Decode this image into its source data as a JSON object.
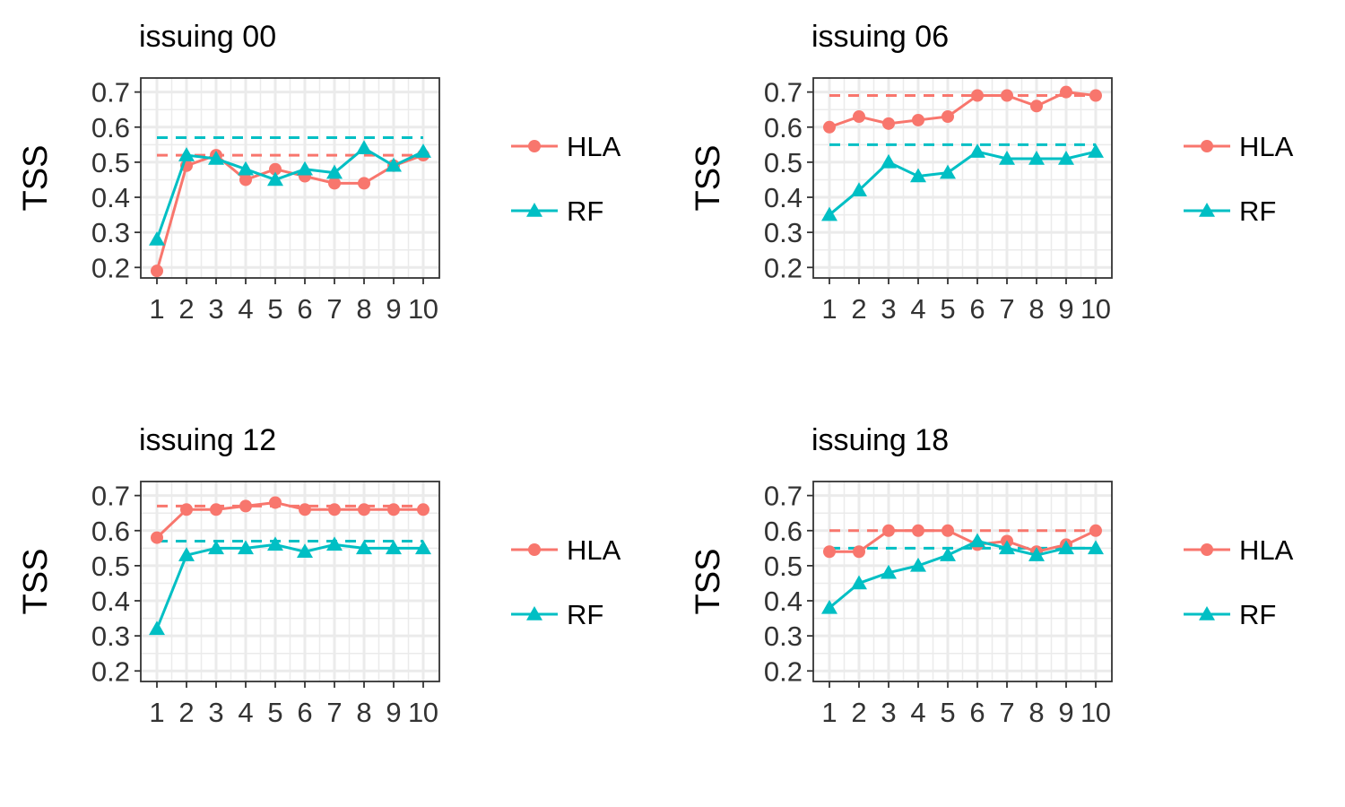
{
  "colors": {
    "HLA": "#F8766D",
    "RF": "#00BFC4",
    "grid": "#EBEBEB",
    "frame": "#333333"
  },
  "chart_data": [
    {
      "type": "line",
      "title": "issuing 00",
      "xlabel": "",
      "ylabel": "TSS",
      "categories": [
        "1",
        "2",
        "3",
        "4",
        "5",
        "6",
        "7",
        "8",
        "9",
        "10"
      ],
      "ylim": [
        0.17,
        0.74
      ],
      "yticks": [
        "0.2",
        "0.3",
        "0.4",
        "0.5",
        "0.6",
        "0.7"
      ],
      "series": [
        {
          "name": "HLA",
          "marker": "circle",
          "values": [
            0.19,
            0.49,
            0.52,
            0.45,
            0.48,
            0.46,
            0.44,
            0.44,
            0.49,
            0.52
          ],
          "reference": 0.52
        },
        {
          "name": "RF",
          "marker": "triangle",
          "values": [
            0.28,
            0.52,
            0.51,
            0.48,
            0.45,
            0.48,
            0.47,
            0.54,
            0.49,
            0.53
          ],
          "reference": 0.57
        }
      ],
      "legend": "right"
    },
    {
      "type": "line",
      "title": "issuing 06",
      "xlabel": "",
      "ylabel": "TSS",
      "categories": [
        "1",
        "2",
        "3",
        "4",
        "5",
        "6",
        "7",
        "8",
        "9",
        "10"
      ],
      "ylim": [
        0.17,
        0.74
      ],
      "yticks": [
        "0.2",
        "0.3",
        "0.4",
        "0.5",
        "0.6",
        "0.7"
      ],
      "series": [
        {
          "name": "HLA",
          "marker": "circle",
          "values": [
            0.6,
            0.63,
            0.61,
            0.62,
            0.63,
            0.69,
            0.69,
            0.66,
            0.7,
            0.69
          ],
          "reference": 0.69
        },
        {
          "name": "RF",
          "marker": "triangle",
          "values": [
            0.35,
            0.42,
            0.5,
            0.46,
            0.47,
            0.53,
            0.51,
            0.51,
            0.51,
            0.53
          ],
          "reference": 0.55
        }
      ],
      "legend": "right"
    },
    {
      "type": "line",
      "title": "issuing 12",
      "xlabel": "",
      "ylabel": "TSS",
      "categories": [
        "1",
        "2",
        "3",
        "4",
        "5",
        "6",
        "7",
        "8",
        "9",
        "10"
      ],
      "ylim": [
        0.17,
        0.74
      ],
      "yticks": [
        "0.2",
        "0.3",
        "0.4",
        "0.5",
        "0.6",
        "0.7"
      ],
      "series": [
        {
          "name": "HLA",
          "marker": "circle",
          "values": [
            0.58,
            0.66,
            0.66,
            0.67,
            0.68,
            0.66,
            0.66,
            0.66,
            0.66,
            0.66
          ],
          "reference": 0.67
        },
        {
          "name": "RF",
          "marker": "triangle",
          "values": [
            0.32,
            0.53,
            0.55,
            0.55,
            0.56,
            0.54,
            0.56,
            0.55,
            0.55,
            0.55
          ],
          "reference": 0.57
        }
      ],
      "legend": "right"
    },
    {
      "type": "line",
      "title": "issuing 18",
      "xlabel": "",
      "ylabel": "TSS",
      "categories": [
        "1",
        "2",
        "3",
        "4",
        "5",
        "6",
        "7",
        "8",
        "9",
        "10"
      ],
      "ylim": [
        0.17,
        0.74
      ],
      "yticks": [
        "0.2",
        "0.3",
        "0.4",
        "0.5",
        "0.6",
        "0.7"
      ],
      "series": [
        {
          "name": "HLA",
          "marker": "circle",
          "values": [
            0.54,
            0.54,
            0.6,
            0.6,
            0.6,
            0.56,
            0.57,
            0.54,
            0.56,
            0.6
          ],
          "reference": 0.6
        },
        {
          "name": "RF",
          "marker": "triangle",
          "values": [
            0.38,
            0.45,
            0.48,
            0.5,
            0.53,
            0.57,
            0.55,
            0.53,
            0.55,
            0.55
          ],
          "reference": 0.55
        }
      ],
      "legend": "right"
    }
  ]
}
